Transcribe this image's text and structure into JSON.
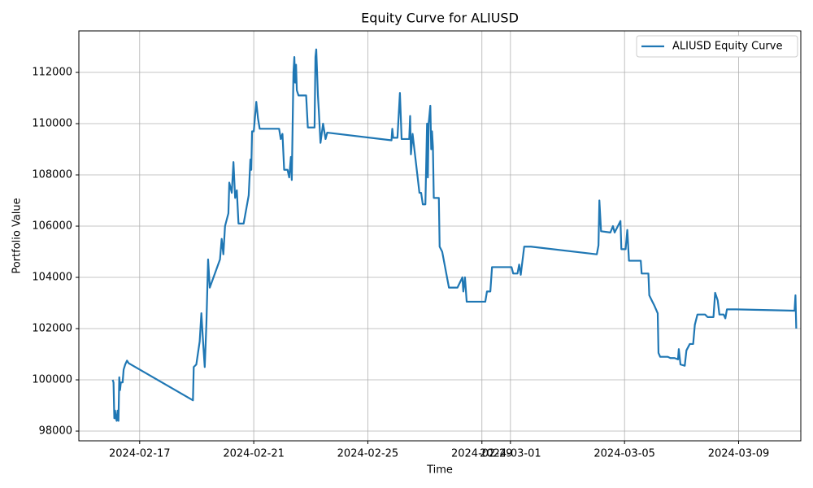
{
  "chart_data": {
    "type": "line",
    "title": "Equity Curve for ALIUSD",
    "xlabel": "Time",
    "ylabel": "Portfolio Value",
    "x": [
      "2024-02-16T01:15",
      "2024-02-16T02:00",
      "2024-02-16T02:40",
      "2024-02-16T03:20",
      "2024-02-16T04:00",
      "2024-02-16T04:40",
      "2024-02-16T05:30",
      "2024-02-16T06:10",
      "2024-02-16T06:50",
      "2024-02-16T07:30",
      "2024-02-16T08:10",
      "2024-02-16T09:40",
      "2024-02-16T10:30",
      "2024-02-16T11:50",
      "2024-02-16T13:20",
      "2024-02-16T14:45",
      "2024-02-18T20:50",
      "2024-02-18T21:30",
      "2024-02-18T23:40",
      "2024-02-19T02:30",
      "2024-02-19T03:55",
      "2024-02-19T05:20",
      "2024-02-19T06:45",
      "2024-02-19T08:10",
      "2024-02-19T09:35",
      "2024-02-19T11:00",
      "2024-02-19T19:35",
      "2024-02-19T21:00",
      "2024-02-19T22:25",
      "2024-02-19T23:50",
      "2024-02-20T02:40",
      "2024-02-20T03:25",
      "2024-02-20T05:30",
      "2024-02-20T06:55",
      "2024-02-20T08:20",
      "2024-02-20T09:45",
      "2024-02-20T11:10",
      "2024-02-20T15:30",
      "2024-02-20T19:45",
      "2024-02-20T21:10",
      "2024-02-20T21:55",
      "2024-02-20T22:35",
      "2024-02-21T00:00",
      "2024-02-21T02:08",
      "2024-02-21T03:35",
      "2024-02-21T05:00",
      "2024-02-21T21:20",
      "2024-02-21T22:45",
      "2024-02-22T00:10",
      "2024-02-22T01:35",
      "2024-02-22T04:25",
      "2024-02-22T05:50",
      "2024-02-22T07:15",
      "2024-02-22T08:00",
      "2024-02-22T09:25",
      "2024-02-22T10:10",
      "2024-02-22T10:50",
      "2024-02-22T11:35",
      "2024-02-22T12:15",
      "2024-02-22T13:40",
      "2024-02-22T20:05",
      "2024-02-22T21:30",
      "2024-02-23T03:10",
      "2024-02-23T03:55",
      "2024-02-23T04:35",
      "2024-02-23T06:00",
      "2024-02-23T06:45",
      "2024-02-23T08:10",
      "2024-02-23T10:20",
      "2024-02-23T12:25",
      "2024-02-23T13:50",
      "2024-02-25T19:55",
      "2024-02-25T20:35",
      "2024-02-25T21:20",
      "2024-02-26T00:55",
      "2024-02-26T03:00",
      "2024-02-26T04:25",
      "2024-02-26T10:50",
      "2024-02-26T11:35",
      "2024-02-26T12:15",
      "2024-02-26T13:40",
      "2024-02-26T19:25",
      "2024-02-26T20:50",
      "2024-02-26T22:15",
      "2024-02-27T00:25",
      "2024-02-27T01:50",
      "2024-02-27T02:30",
      "2024-02-27T03:10",
      "2024-02-27T04:35",
      "2024-02-27T05:20",
      "2024-02-27T06:00",
      "2024-02-27T06:45",
      "2024-02-27T07:30",
      "2024-02-27T11:45",
      "2024-02-27T12:25",
      "2024-02-27T14:35",
      "2024-02-27T20:15",
      "2024-02-28T03:25",
      "2024-02-28T07:35",
      "2024-02-28T08:20",
      "2024-02-28T09:45",
      "2024-02-28T11:10",
      "2024-02-29T02:50",
      "2024-02-29T04:15",
      "2024-02-29T07:05",
      "2024-02-29T08:30",
      "2024-03-01T00:55",
      "2024-03-01T02:20",
      "2024-03-01T05:55",
      "2024-03-01T07:20",
      "2024-03-01T08:40",
      "2024-03-01T11:35",
      "2024-03-01T17:15",
      "2024-03-04T00:40",
      "2024-03-04T02:05",
      "2024-03-04T02:50",
      "2024-03-04T04:15",
      "2024-03-04T12:05",
      "2024-03-04T14:15",
      "2024-03-04T15:40",
      "2024-03-04T20:35",
      "2024-03-04T21:20",
      "2024-03-05T00:55",
      "2024-03-05T02:20",
      "2024-03-05T03:45",
      "2024-03-05T13:40",
      "2024-03-05T14:25",
      "2024-03-05T20:05",
      "2024-03-05T20:50",
      "2024-03-05T22:55",
      "2024-03-06T01:05",
      "2024-03-06T03:55",
      "2024-03-06T04:35",
      "2024-03-06T06:00",
      "2024-03-06T12:25",
      "2024-03-06T14:35",
      "2024-03-06T18:05",
      "2024-03-06T21:00",
      "2024-03-06T21:40",
      "2024-03-06T23:05",
      "2024-03-07T02:40",
      "2024-03-07T04:05",
      "2024-03-07T06:55",
      "2024-03-07T09:45",
      "2024-03-07T11:10",
      "2024-03-07T13:20",
      "2024-03-07T19:45",
      "2024-03-07T21:55",
      "2024-03-08T02:50",
      "2024-03-08T04:15",
      "2024-03-08T06:25",
      "2024-03-08T07:50",
      "2024-03-08T11:25",
      "2024-03-08T12:50",
      "2024-03-08T14:10",
      "2024-03-08T22:00",
      "2024-03-10T23:05",
      "2024-03-10T23:50",
      "2024-03-11T00:30"
    ],
    "series": [
      {
        "name": "ALIUSD Equity Curve",
        "color": "#1f77b4",
        "values": [
          100000,
          99900,
          98500,
          98800,
          98500,
          98400,
          98800,
          98400,
          100100,
          99600,
          99900,
          99900,
          100400,
          100600,
          100750,
          100650,
          99200,
          100500,
          100600,
          101500,
          102600,
          101500,
          100500,
          102200,
          104700,
          103600,
          104700,
          105500,
          104900,
          106000,
          106500,
          107700,
          107300,
          108500,
          107100,
          107400,
          106100,
          106100,
          107200,
          108600,
          108200,
          109700,
          109700,
          110850,
          110200,
          109800,
          109800,
          109400,
          109600,
          108200,
          108200,
          107900,
          108700,
          107800,
          112000,
          112600,
          111600,
          112300,
          111300,
          111100,
          111100,
          109850,
          109850,
          112600,
          112900,
          111100,
          110500,
          109250,
          110000,
          109400,
          109650,
          109350,
          109800,
          109450,
          109450,
          111200,
          109400,
          109400,
          110300,
          108800,
          109600,
          107300,
          107300,
          106850,
          106850,
          110000,
          107900,
          110000,
          110700,
          109000,
          109700,
          109100,
          107100,
          107100,
          105200,
          105000,
          103600,
          103600,
          104000,
          103450,
          104000,
          103050,
          103050,
          103450,
          103450,
          104400,
          104400,
          104150,
          104150,
          104500,
          104100,
          105200,
          105200,
          104900,
          105250,
          107000,
          105800,
          105750,
          106000,
          105750,
          106200,
          105100,
          105100,
          105850,
          104650,
          104650,
          104150,
          104150,
          103300,
          103100,
          102900,
          102600,
          101050,
          100900,
          100900,
          100850,
          100850,
          100800,
          101200,
          100600,
          100550,
          101150,
          101400,
          101400,
          102150,
          102550,
          102550,
          102450,
          102450,
          103400,
          103100,
          102550,
          102550,
          102400,
          102750,
          102750,
          102700,
          103300,
          102000
        ]
      }
    ],
    "xlim": [
      "2024-02-14T20:50",
      "2024-03-11T04:20"
    ],
    "xticks": [
      "2024-02-17",
      "2024-02-21",
      "2024-02-25",
      "2024-02-29",
      "2024-03-01",
      "2024-03-05",
      "2024-03-09"
    ],
    "ylim": [
      97620,
      113620
    ],
    "yticks": [
      98000,
      100000,
      102000,
      104000,
      106000,
      108000,
      110000,
      112000
    ],
    "grid": true,
    "legend": "upper right"
  }
}
